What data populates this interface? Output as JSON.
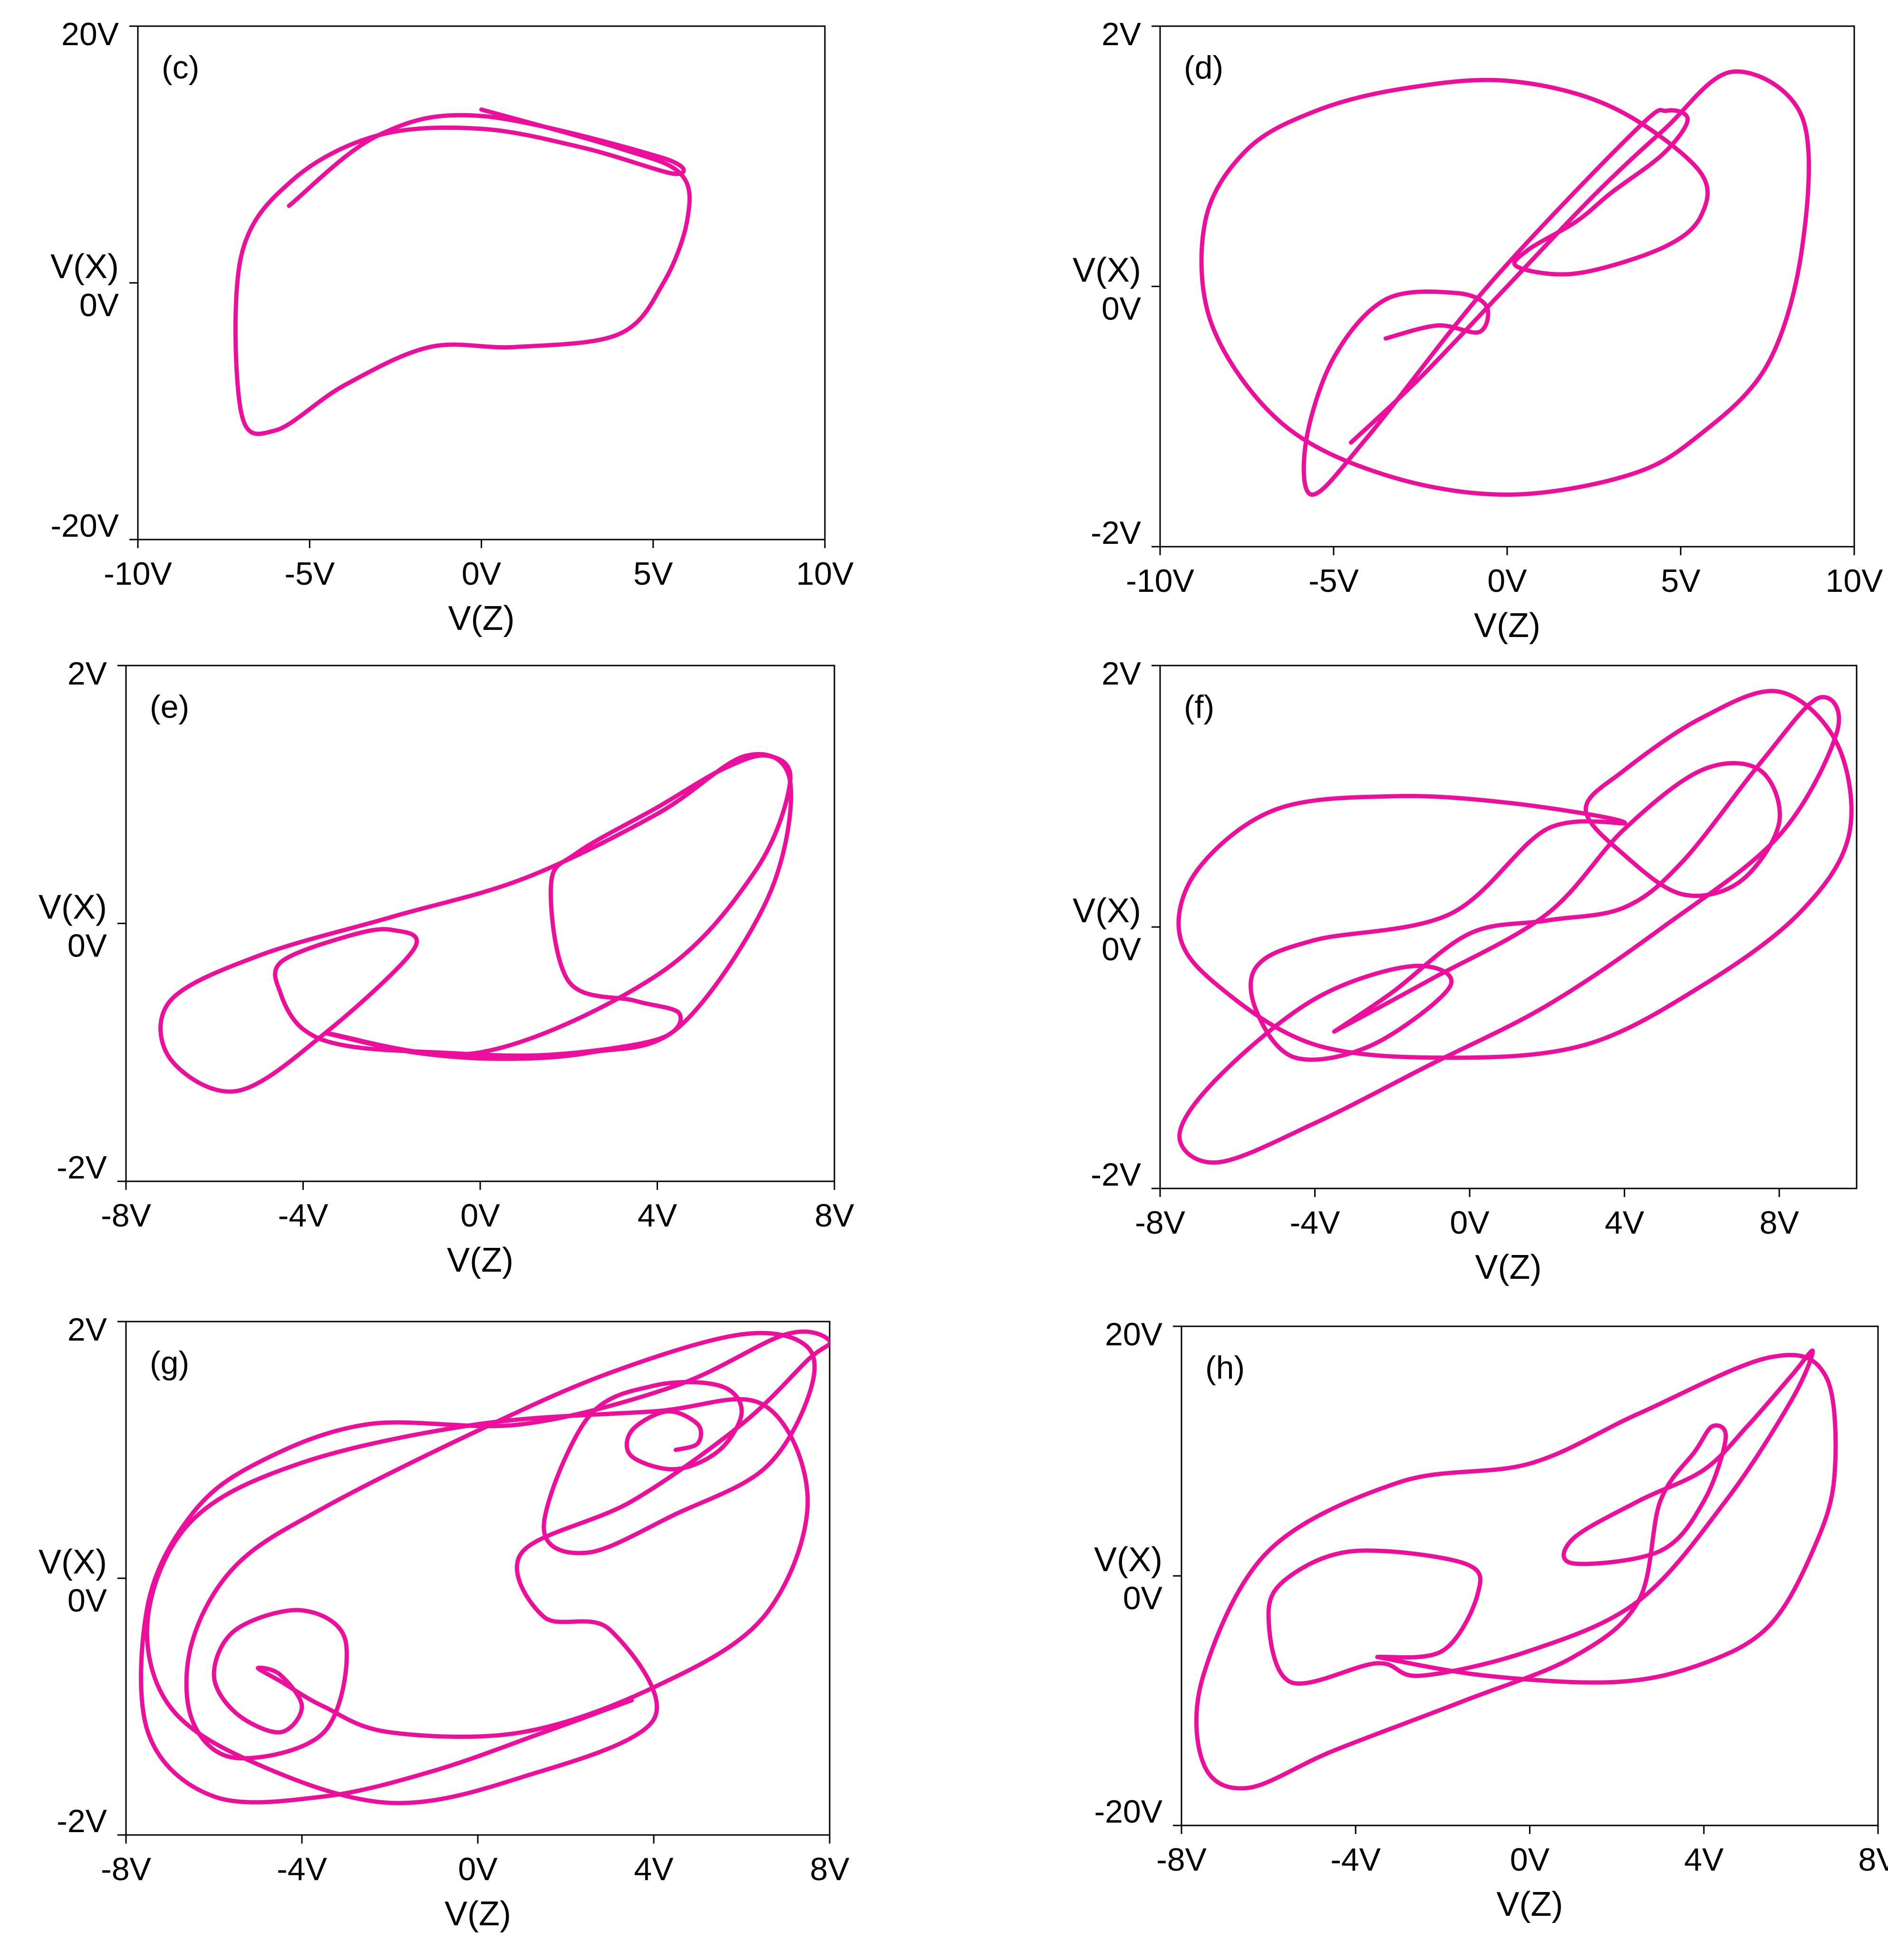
{
  "figure": {
    "trace_color": "#ec0f9b",
    "axis_color": "#000000"
  },
  "chart_data": [
    {
      "type": "line",
      "panel_label": "(c)",
      "xlabel": "V(Z)",
      "ylabel": "V(X)",
      "xlim": [
        -10,
        10
      ],
      "ylim": [
        -20,
        20
      ],
      "x_ticks": [
        -10,
        -5,
        0,
        5,
        10
      ],
      "x_tick_labels": [
        "-10V",
        "-5V",
        "0V",
        "5V",
        "10V"
      ],
      "y_ticks": [
        -20,
        0,
        20
      ],
      "y_tick_labels": [
        "-20V",
        "0V",
        "20V"
      ],
      "grid": false,
      "series": [
        {
          "x": [
            0,
            4,
            5.8,
            6,
            5.3,
            4,
            1,
            -1.5,
            -4,
            -6,
            -7,
            -7,
            -5.5,
            -3,
            0,
            3,
            5.6,
            5.2,
            0,
            -3,
            -5.6
          ],
          "y": [
            13.5,
            10.5,
            8.5,
            5,
            0,
            -4,
            -5,
            -5,
            -8,
            -11.5,
            -10,
            2,
            8,
            11.5,
            12,
            10.5,
            8.5,
            9.8,
            13,
            11.5,
            6
          ]
        }
      ]
    },
    {
      "type": "line",
      "panel_label": "(d)",
      "xlabel": "V(Z)",
      "ylabel": "V(X)",
      "xlim": [
        -10,
        10
      ],
      "ylim": [
        -2,
        2
      ],
      "x_ticks": [
        -10,
        -5,
        0,
        5,
        10
      ],
      "x_tick_labels": [
        "-10V",
        "-5V",
        "0V",
        "5V",
        "10V"
      ],
      "y_ticks": [
        -2,
        0,
        2
      ],
      "y_tick_labels": [
        "-2V",
        "0V",
        "2V"
      ],
      "grid": false,
      "series": [
        {
          "x": [
            -4.5,
            -2.5,
            0,
            2.5,
            4.5,
            6.5,
            8.5,
            8.5,
            7.5,
            5.5,
            3.5,
            0,
            -3.5,
            -6.5,
            -8.5,
            -8.7,
            -7.5,
            -5.5,
            -3,
            0,
            3,
            5.5,
            5.6,
            4.5,
            2,
            0.3,
            0.6,
            2,
            3,
            4.5,
            5.2,
            4.6,
            3.7,
            -0.5,
            -4,
            -5.6,
            -5.8,
            -5,
            -3.5,
            -1.5,
            -0.6,
            -0.8,
            -2,
            -3.5
          ],
          "y": [
            -1.2,
            -0.7,
            0,
            0.7,
            1.2,
            1.65,
            1.3,
            0.3,
            -0.6,
            -1.15,
            -1.45,
            -1.6,
            -1.45,
            -1.05,
            -0.3,
            0.5,
            1.05,
            1.35,
            1.52,
            1.58,
            1.38,
            0.9,
            0.55,
            0.3,
            0.1,
            0.15,
            0.28,
            0.5,
            0.72,
            1.02,
            1.28,
            1.35,
            1.2,
            0.02,
            -1.15,
            -1.6,
            -1.2,
            -0.55,
            -0.1,
            -0.05,
            -0.15,
            -0.35,
            -0.3,
            -0.4
          ]
        }
      ]
    },
    {
      "type": "line",
      "panel_label": "(e)",
      "xlabel": "V(Z)",
      "ylabel": "V(X)",
      "xlim": [
        -8,
        8
      ],
      "ylim": [
        -2,
        2
      ],
      "x_ticks": [
        -8,
        -4,
        0,
        4,
        8
      ],
      "x_tick_labels": [
        "-8V",
        "-4V",
        "0V",
        "4V",
        "8V"
      ],
      "y_ticks": [
        -2,
        0,
        2
      ],
      "y_tick_labels": [
        "-2V",
        "0V",
        "2V"
      ],
      "grid": false,
      "series": [
        {
          "x": [
            -3.5,
            -1.5,
            0.5,
            2.5,
            4.5,
            6.5,
            7,
            6,
            4,
            1,
            -2,
            -5,
            -7,
            -7,
            -5.5,
            -3.5,
            -1.5,
            -2,
            -3,
            -4.5,
            -4.5,
            -4,
            -3,
            -1,
            1.5,
            4,
            4.5,
            3.5,
            2,
            1.6,
            2.2,
            4,
            5.5,
            6.5,
            7,
            6.2,
            4,
            0,
            -3.5
          ],
          "y": [
            -0.85,
            -1,
            -1.05,
            -1,
            -0.8,
            0.2,
            1.1,
            1.3,
            0.85,
            0.35,
            0.05,
            -0.25,
            -0.6,
            -1.05,
            -1.3,
            -0.85,
            -0.2,
            -0.05,
            -0.1,
            -0.3,
            -0.55,
            -0.82,
            -0.95,
            -1,
            -1.02,
            -0.9,
            -0.7,
            -0.6,
            -0.45,
            0.3,
            0.55,
            0.9,
            1.2,
            1.3,
            1.1,
            0.4,
            -0.4,
            -1,
            -0.85
          ]
        }
      ]
    },
    {
      "type": "line",
      "panel_label": "(f)",
      "xlabel": "V(Z)",
      "ylabel": "V(X)",
      "xlim": [
        -8,
        10
      ],
      "ylim": [
        -2,
        2
      ],
      "x_ticks": [
        -8,
        -4,
        0,
        4,
        8
      ],
      "x_tick_labels": [
        "-8V",
        "-4V",
        "0V",
        "4V",
        "8V"
      ],
      "y_ticks": [
        -2,
        0,
        2
      ],
      "y_tick_labels": [
        "-2V",
        "0V",
        "2V"
      ],
      "grid": false,
      "series": [
        {
          "x": [
            -3.5,
            -1,
            2,
            4,
            6,
            7.5,
            8,
            7,
            5.5,
            4,
            3,
            4,
            6,
            8,
            9.5,
            9.8,
            8.5,
            6,
            3,
            -0.5,
            -4,
            -6.5,
            -7.5,
            -7,
            -5,
            -2,
            1,
            4,
            2,
            -0.5,
            -4,
            -5.5,
            -5.5,
            -4.5,
            -2.5,
            -0.5,
            -1.5,
            -4,
            -6.5,
            -7.5,
            -6.5,
            -4,
            -1,
            2,
            5,
            8,
            9.5,
            9,
            7.5,
            5.5,
            4,
            2,
            0,
            -2,
            -3.5
          ],
          "y": [
            -0.8,
            -0.4,
            0.1,
            0.75,
            1.2,
            1.2,
            0.8,
            0.35,
            0.25,
            0.55,
            0.9,
            1.2,
            1.6,
            1.8,
            1.4,
            0.7,
            0.1,
            -0.45,
            -0.9,
            -1,
            -0.9,
            -0.45,
            -0.05,
            0.45,
            0.9,
            1,
            0.95,
            0.8,
            0.75,
            0.1,
            -0.1,
            -0.3,
            -0.65,
            -1,
            -0.9,
            -0.45,
            -0.3,
            -0.55,
            -1.15,
            -1.6,
            -1.8,
            -1.5,
            -1.05,
            -0.6,
            0,
            0.7,
            1.5,
            1.75,
            1.25,
            0.5,
            0.15,
            0.05,
            -0.05,
            -0.5,
            -0.8
          ]
        }
      ]
    },
    {
      "type": "line",
      "panel_label": "(g)",
      "xlabel": "V(Z)",
      "ylabel": "V(X)",
      "xlim": [
        -8,
        8
      ],
      "ylim": [
        -2,
        2
      ],
      "x_ticks": [
        -8,
        -4,
        0,
        4,
        8
      ],
      "x_tick_labels": [
        "-8V",
        "-4V",
        "0V",
        "4V",
        "8V"
      ],
      "y_ticks": [
        -2,
        0,
        2
      ],
      "y_tick_labels": [
        "-2V",
        "0V",
        "2V"
      ],
      "grid": false,
      "series": [
        {
          "x": [
            4.5,
            5,
            5,
            4.3,
            3.5,
            3.5,
            4.5,
            5.5,
            6,
            5.5,
            4,
            2.5,
            1.5,
            2.5,
            4.5,
            6.5,
            7.5,
            7.5,
            6,
            3,
            0,
            -3.5,
            -5.5,
            -6.5,
            -6.5,
            -5.5,
            -3.5,
            -3,
            -4,
            -5.5,
            -6,
            -5.5,
            -4.5,
            -4,
            -4.5,
            -5,
            -4.5,
            -3.5,
            -2,
            1,
            4,
            6.5,
            7.5,
            6.5,
            4,
            0,
            -4,
            -6.5,
            -7.5,
            -7,
            -5,
            -2,
            1,
            4,
            3,
            1.5,
            1,
            3.5,
            6,
            7.5,
            8,
            7,
            4.5,
            1,
            -2.5,
            -5,
            -6.5,
            -7.5,
            -7.5,
            -6,
            -3.5,
            -1,
            1.5,
            3.5
          ],
          "y": [
            1,
            1.05,
            1.2,
            1.3,
            1.15,
            0.95,
            0.85,
            1,
            1.3,
            1.5,
            1.5,
            1.25,
            0.4,
            0.2,
            0.5,
            0.85,
            1.4,
            1.8,
            1.9,
            1.6,
            1.15,
            0.55,
            0.1,
            -0.5,
            -1.1,
            -1.4,
            -1.2,
            -0.5,
            -0.25,
            -0.4,
            -0.75,
            -1.05,
            -1.2,
            -1,
            -0.75,
            -0.7,
            -0.8,
            -1,
            -1.2,
            -1.2,
            -0.85,
            -0.3,
            0.6,
            1.35,
            1.3,
            1.2,
            0.9,
            0.45,
            -0.3,
            -1,
            -1.45,
            -1.75,
            -1.55,
            -1.1,
            -0.4,
            -0.3,
            0.2,
            0.6,
            1.2,
            1.7,
            1.85,
            1.9,
            1.5,
            1.2,
            1.2,
            0.9,
            0.5,
            -0.2,
            -1.2,
            -1.7,
            -1.7,
            -1.5,
            -1.2,
            -0.95
          ]
        }
      ]
    },
    {
      "type": "line",
      "panel_label": "(h)",
      "xlabel": "V(Z)",
      "ylabel": "V(X)",
      "xlim": [
        -8,
        8
      ],
      "ylim": [
        -20,
        20
      ],
      "x_ticks": [
        -8,
        -4,
        0,
        4,
        8
      ],
      "x_tick_labels": [
        "-8V",
        "-4V",
        "0V",
        "4V",
        "8V"
      ],
      "y_ticks": [
        -20,
        0,
        20
      ],
      "y_tick_labels": [
        "-20V",
        "0V",
        "20V"
      ],
      "grid": false,
      "series": [
        {
          "x": [
            -3.5,
            -1,
            2,
            4,
            5.5,
            6.5,
            7,
            6.8,
            5.5,
            2.5,
            0,
            -3,
            -6,
            -7.5,
            -7.5,
            -6.5,
            -4.5,
            -1.5,
            1,
            2.5,
            3,
            3.8,
            4.2,
            4.5,
            4,
            3,
            1,
            1,
            2.5,
            4,
            5,
            6,
            6.5,
            6,
            4.5,
            2.5,
            0,
            -2.5,
            -3.5,
            -5.5,
            -6,
            -5.5,
            -4,
            -1.5,
            -1.2,
            -2,
            -3.5
          ],
          "y": [
            -6.5,
            -8,
            -8.5,
            -7,
            -4,
            2,
            8,
            16,
            17.5,
            13,
            9,
            7.5,
            2,
            -8,
            -15,
            -17,
            -14,
            -10,
            -6.5,
            -2,
            6,
            10,
            12,
            11,
            6,
            2,
            1,
            3,
            6,
            8.5,
            12,
            16,
            18,
            14,
            6,
            -2,
            -6,
            -8,
            -7,
            -8.5,
            -3,
            0,
            2,
            1,
            -1.5,
            -6,
            -6.5
          ]
        }
      ]
    }
  ]
}
